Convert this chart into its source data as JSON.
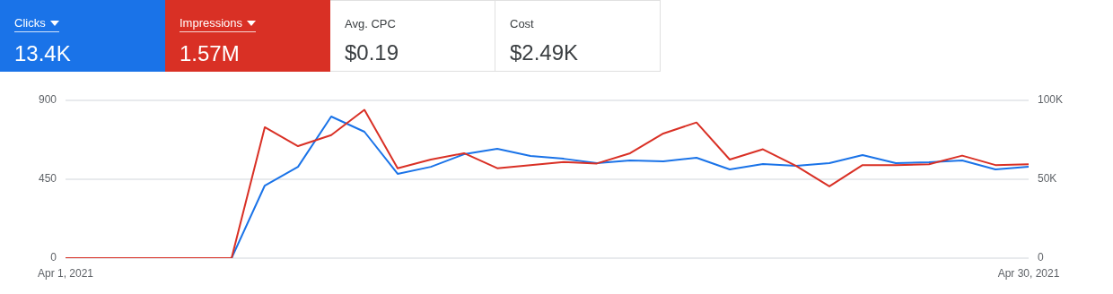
{
  "chart_data": {
    "type": "line",
    "x": [
      "2021-04-01",
      "2021-04-02",
      "2021-04-03",
      "2021-04-04",
      "2021-04-05",
      "2021-04-06",
      "2021-04-07",
      "2021-04-08",
      "2021-04-09",
      "2021-04-10",
      "2021-04-11",
      "2021-04-12",
      "2021-04-13",
      "2021-04-14",
      "2021-04-15",
      "2021-04-16",
      "2021-04-17",
      "2021-04-18",
      "2021-04-19",
      "2021-04-20",
      "2021-04-21",
      "2021-04-22",
      "2021-04-23",
      "2021-04-24",
      "2021-04-25",
      "2021-04-26",
      "2021-04-27",
      "2021-04-28",
      "2021-04-29",
      "2021-04-30"
    ],
    "xlim": [
      "2021-04-01",
      "2021-04-30"
    ],
    "xticks": [
      {
        "value": "2021-04-01",
        "label": "Apr 1, 2021"
      },
      {
        "value": "2021-04-30",
        "label": "Apr 30, 2021"
      }
    ],
    "ylim": [
      0,
      900
    ],
    "yticks": [
      0,
      450,
      900
    ],
    "y2lim": [
      0,
      100000
    ],
    "y2ticks": [
      0,
      {
        "value": 50000,
        "label": "50K"
      },
      {
        "value": 100000,
        "label": "100K"
      }
    ],
    "series": [
      {
        "name": "Clicks",
        "color": "#1a73e8",
        "values": [
          null,
          null,
          null,
          null,
          0,
          0,
          414,
          521,
          808,
          721,
          481,
          521,
          593,
          624,
          583,
          567,
          542,
          557,
          552,
          573,
          506,
          537,
          527,
          542,
          588,
          542,
          547,
          557,
          506,
          521
        ]
      },
      {
        "name": "Impressions",
        "color": "#d93025",
        "axis": "y2",
        "values": [
          0,
          0,
          0,
          0,
          0,
          0,
          83000,
          71000,
          78000,
          94000,
          57000,
          62500,
          66500,
          57000,
          59000,
          61000,
          60000,
          66500,
          79000,
          86000,
          62500,
          69000,
          58500,
          45500,
          59000,
          59000,
          59500,
          65000,
          59000,
          59500
        ]
      }
    ],
    "annotations": [
      "13.4K",
      "1.57M",
      "Avg. CPC",
      "$0.19",
      "Cost",
      "$2.49K"
    ],
    "grid": "y",
    "legend": "top left",
    "marker": "none",
    "line_style": "solid"
  }
}
